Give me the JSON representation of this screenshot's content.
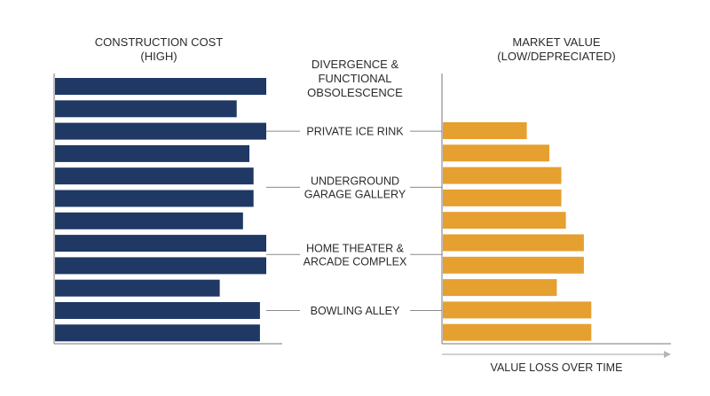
{
  "chart_data": {
    "type": "bar",
    "left_panel": {
      "title_line1": "CONSTRUCTION COST",
      "title_line2": "(HIGH)",
      "values": [
        100,
        86,
        100,
        92,
        94,
        94,
        89,
        100,
        100,
        78,
        97,
        97
      ],
      "color": "#1f3864"
    },
    "center": {
      "title_line1": "DIVERGENCE &",
      "title_line2": "FUNCTIONAL",
      "title_line3": "OBSOLESCENCE",
      "labels": [
        {
          "lines": [
            "PRIVATE ICE RINK"
          ],
          "row": 2
        },
        {
          "lines": [
            "UNDERGROUND",
            "GARAGE GALLERY"
          ],
          "row": 4.5
        },
        {
          "lines": [
            "HOME THEATER &",
            "ARCADE COMPLEX"
          ],
          "row": 7.5
        },
        {
          "lines": [
            "BOWLING ALLEY"
          ],
          "row": 10
        }
      ],
      "leader_color": "#8a8a8a"
    },
    "right_panel": {
      "title_line1": "MARKET VALUE",
      "title_line2": "(LOW/DEPRECIATED)",
      "values": [
        56,
        71,
        79,
        79,
        82,
        94,
        94,
        76,
        99,
        99
      ],
      "color": "#e6a030",
      "xlabel": "VALUE LOSS OVER TIME"
    },
    "value_max": 100
  }
}
